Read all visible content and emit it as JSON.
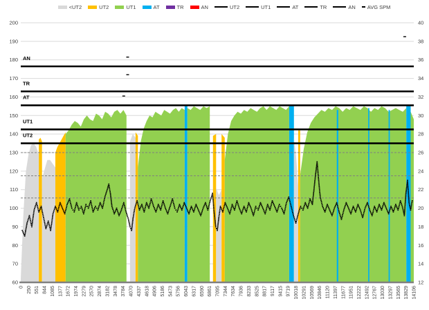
{
  "chart_data": {
    "type": "area",
    "title": "",
    "legend": {
      "swatch_items": [
        {
          "label": "<UT2",
          "color": "#d9d9d9"
        },
        {
          "label": "UT2",
          "color": "#ffc000"
        },
        {
          "label": "UT1",
          "color": "#92d050"
        },
        {
          "label": "AT",
          "color": "#00b0f0"
        },
        {
          "label": "TR",
          "color": "#7030a0"
        },
        {
          "label": "AN",
          "color": "#ff0000"
        }
      ],
      "line_items": [
        {
          "label": "UT2"
        },
        {
          "label": "UT1"
        },
        {
          "label": "AT"
        },
        {
          "label": "TR"
        },
        {
          "label": "AN"
        }
      ],
      "dash_item": {
        "label": "AVG SPM"
      }
    },
    "left_axis": {
      "min": 60,
      "max": 200,
      "step": 10,
      "ticks": [
        200,
        190,
        180,
        170,
        160,
        150,
        140,
        130,
        120,
        110,
        100,
        90,
        80,
        70,
        60
      ]
    },
    "right_axis": {
      "min": 12,
      "max": 40,
      "step": 2,
      "ticks": [
        40,
        38,
        36,
        34,
        32,
        30,
        28,
        26,
        24,
        22,
        20,
        18,
        16,
        14,
        12
      ]
    },
    "x_labels": [
      "0",
      "250",
      "551",
      "844",
      "1085",
      "1377",
      "1672",
      "1974",
      "2279",
      "2570",
      "2874",
      "3182",
      "3478",
      "3784",
      "4070",
      "4337",
      "4618",
      "4906",
      "5186",
      "5473",
      "5756",
      "6043",
      "6317",
      "6590",
      "6861",
      "7095",
      "7344",
      "7634",
      "7936",
      "8233",
      "8525",
      "8817",
      "9117",
      "9415",
      "9719",
      "10018",
      "10291",
      "10569",
      "10846",
      "11120",
      "11397",
      "11677",
      "11951",
      "12222",
      "12492",
      "12767",
      "13030",
      "13297",
      "13565",
      "13829",
      "14106"
    ],
    "threshold_lines": [
      {
        "label": "AN",
        "value": 176.5
      },
      {
        "label": "TR",
        "value": 163
      },
      {
        "label": "AT",
        "value": 155.5
      },
      {
        "label": "UT1",
        "value": 142.5
      },
      {
        "label": "UT2",
        "value": 135
      }
    ],
    "dashed_guide_values": [
      130,
      117.5,
      105.5
    ],
    "area_segments": [
      {
        "c": "gray",
        "x0": 0,
        "x1": 0.046,
        "t": [
          62,
          96,
          120,
          129,
          134,
          135,
          133,
          129
        ]
      },
      {
        "c": "orange",
        "x0": 0.046,
        "x1": 0.054,
        "t": [
          137,
          138,
          136
        ]
      },
      {
        "c": "gray",
        "x0": 0.054,
        "x1": 0.088,
        "t": [
          116,
          121,
          126,
          126,
          124,
          122
        ]
      },
      {
        "c": "orange",
        "x0": 0.088,
        "x1": 0.114,
        "t": [
          130,
          133,
          135,
          137,
          139,
          141
        ]
      },
      {
        "c": "green",
        "x0": 0.114,
        "x1": 0.269,
        "t": [
          140,
          142,
          145,
          147,
          146,
          144,
          148,
          150,
          148,
          147,
          151,
          150,
          148,
          152,
          151,
          149,
          152,
          153,
          151,
          153,
          150
        ]
      },
      {
        "c": "gray",
        "x0": 0.278,
        "x1": 0.292,
        "t": [
          136,
          140,
          138
        ]
      },
      {
        "c": "orange",
        "x0": 0.292,
        "x1": 0.298,
        "t": [
          141,
          139
        ]
      },
      {
        "c": "green",
        "x0": 0.298,
        "x1": 0.417,
        "t": [
          122,
          136,
          143,
          147,
          150,
          149,
          152,
          151,
          150,
          153,
          152,
          151,
          153,
          154,
          152,
          154,
          153
        ]
      },
      {
        "c": "blue",
        "x0": 0.417,
        "x1": 0.424,
        "t": [
          155
        ]
      },
      {
        "c": "green",
        "x0": 0.424,
        "x1": 0.481,
        "t": [
          154,
          153,
          155,
          154,
          153,
          155,
          154,
          155
        ]
      },
      {
        "c": "orange",
        "x0": 0.489,
        "x1": 0.497,
        "t": [
          139,
          140
        ]
      },
      {
        "c": "gray",
        "x0": 0.497,
        "x1": 0.511,
        "t": [
          111,
          107,
          110
        ]
      },
      {
        "c": "orange",
        "x0": 0.511,
        "x1": 0.519,
        "t": [
          140,
          138
        ]
      },
      {
        "c": "green",
        "x0": 0.519,
        "x1": 0.683,
        "t": [
          126,
          140,
          147,
          150,
          152,
          151,
          153,
          152,
          154,
          153,
          152,
          154,
          155,
          153,
          155,
          154,
          153,
          155,
          154,
          153,
          155
        ]
      },
      {
        "c": "blue",
        "x0": 0.683,
        "x1": 0.695,
        "t": [
          155
        ]
      },
      {
        "c": "gray",
        "x0": 0.695,
        "x1": 0.706,
        "t": [
          138,
          128,
          112
        ]
      },
      {
        "c": "orange",
        "x0": 0.706,
        "x1": 0.711,
        "t": [
          142
        ]
      },
      {
        "c": "green",
        "x0": 0.711,
        "x1": 0.981,
        "t": [
          118,
          132,
          141,
          146,
          149,
          151,
          153,
          152,
          154,
          153,
          155,
          154,
          152,
          154,
          153,
          155,
          154,
          153,
          155,
          154,
          152,
          154,
          153,
          155,
          154,
          152,
          153,
          154,
          153,
          152,
          154
        ]
      },
      {
        "c": "blue",
        "x0": 0.804,
        "x1": 0.808,
        "t": [
          153
        ]
      },
      {
        "c": "blue",
        "x0": 0.884,
        "x1": 0.887,
        "t": [
          154
        ]
      },
      {
        "c": "blue",
        "x0": 0.936,
        "x1": 0.939,
        "t": [
          153
        ]
      },
      {
        "c": "blue",
        "x0": 0.981,
        "x1": 0.992,
        "t": [
          155
        ]
      },
      {
        "c": "green",
        "x0": 0.992,
        "x1": 1,
        "t": [
          152,
          148
        ]
      }
    ],
    "avg_spm_points": [
      [
        0.004,
        88
      ],
      [
        0.01,
        85
      ],
      [
        0.016,
        92
      ],
      [
        0.022,
        96
      ],
      [
        0.028,
        90
      ],
      [
        0.034,
        99
      ],
      [
        0.04,
        103
      ],
      [
        0.046,
        98
      ],
      [
        0.052,
        101
      ],
      [
        0.058,
        95
      ],
      [
        0.064,
        89
      ],
      [
        0.07,
        93
      ],
      [
        0.076,
        88
      ],
      [
        0.082,
        97
      ],
      [
        0.088,
        101
      ],
      [
        0.094,
        98
      ],
      [
        0.1,
        103
      ],
      [
        0.106,
        100
      ],
      [
        0.112,
        97
      ],
      [
        0.118,
        102
      ],
      [
        0.124,
        105
      ],
      [
        0.13,
        100
      ],
      [
        0.136,
        98
      ],
      [
        0.142,
        103
      ],
      [
        0.148,
        99
      ],
      [
        0.154,
        101
      ],
      [
        0.16,
        97
      ],
      [
        0.166,
        102
      ],
      [
        0.172,
        100
      ],
      [
        0.178,
        104
      ],
      [
        0.184,
        98
      ],
      [
        0.19,
        101
      ],
      [
        0.196,
        99
      ],
      [
        0.202,
        103
      ],
      [
        0.208,
        100
      ],
      [
        0.214,
        106
      ],
      [
        0.22,
        110
      ],
      [
        0.224,
        113
      ],
      [
        0.228,
        108
      ],
      [
        0.232,
        101
      ],
      [
        0.238,
        97
      ],
      [
        0.244,
        100
      ],
      [
        0.25,
        96
      ],
      [
        0.256,
        99
      ],
      [
        0.262,
        103
      ],
      [
        0.268,
        98
      ],
      [
        0.274,
        94
      ],
      [
        0.278,
        90
      ],
      [
        0.282,
        88
      ],
      [
        0.286,
        95
      ],
      [
        0.29,
        100
      ],
      [
        0.296,
        104
      ],
      [
        0.302,
        99
      ],
      [
        0.308,
        102
      ],
      [
        0.314,
        98
      ],
      [
        0.32,
        103
      ],
      [
        0.326,
        100
      ],
      [
        0.332,
        105
      ],
      [
        0.338,
        101
      ],
      [
        0.344,
        98
      ],
      [
        0.35,
        102
      ],
      [
        0.356,
        99
      ],
      [
        0.362,
        104
      ],
      [
        0.368,
        100
      ],
      [
        0.374,
        97
      ],
      [
        0.38,
        101
      ],
      [
        0.386,
        105
      ],
      [
        0.392,
        100
      ],
      [
        0.398,
        98
      ],
      [
        0.404,
        102
      ],
      [
        0.41,
        99
      ],
      [
        0.416,
        103
      ],
      [
        0.422,
        100
      ],
      [
        0.428,
        97
      ],
      [
        0.434,
        101
      ],
      [
        0.44,
        98
      ],
      [
        0.446,
        102
      ],
      [
        0.452,
        99
      ],
      [
        0.458,
        96
      ],
      [
        0.464,
        100
      ],
      [
        0.47,
        103
      ],
      [
        0.476,
        99
      ],
      [
        0.482,
        104
      ],
      [
        0.488,
        108
      ],
      [
        0.492,
        98
      ],
      [
        0.496,
        90
      ],
      [
        0.5,
        88
      ],
      [
        0.504,
        95
      ],
      [
        0.508,
        101
      ],
      [
        0.514,
        98
      ],
      [
        0.52,
        103
      ],
      [
        0.526,
        100
      ],
      [
        0.532,
        97
      ],
      [
        0.538,
        102
      ],
      [
        0.544,
        99
      ],
      [
        0.55,
        104
      ],
      [
        0.556,
        100
      ],
      [
        0.562,
        97
      ],
      [
        0.568,
        101
      ],
      [
        0.574,
        98
      ],
      [
        0.58,
        103
      ],
      [
        0.586,
        100
      ],
      [
        0.592,
        96
      ],
      [
        0.598,
        101
      ],
      [
        0.604,
        99
      ],
      [
        0.61,
        103
      ],
      [
        0.616,
        100
      ],
      [
        0.622,
        97
      ],
      [
        0.628,
        102
      ],
      [
        0.634,
        99
      ],
      [
        0.64,
        104
      ],
      [
        0.646,
        101
      ],
      [
        0.652,
        98
      ],
      [
        0.658,
        102
      ],
      [
        0.664,
        100
      ],
      [
        0.67,
        97
      ],
      [
        0.676,
        103
      ],
      [
        0.682,
        106
      ],
      [
        0.688,
        101
      ],
      [
        0.694,
        96
      ],
      [
        0.7,
        92
      ],
      [
        0.706,
        97
      ],
      [
        0.712,
        101
      ],
      [
        0.718,
        99
      ],
      [
        0.724,
        103
      ],
      [
        0.73,
        100
      ],
      [
        0.736,
        105
      ],
      [
        0.742,
        102
      ],
      [
        0.746,
        110
      ],
      [
        0.75,
        118
      ],
      [
        0.754,
        125
      ],
      [
        0.758,
        115
      ],
      [
        0.762,
        106
      ],
      [
        0.768,
        101
      ],
      [
        0.774,
        98
      ],
      [
        0.78,
        102
      ],
      [
        0.786,
        99
      ],
      [
        0.792,
        96
      ],
      [
        0.798,
        100
      ],
      [
        0.804,
        103
      ],
      [
        0.81,
        98
      ],
      [
        0.816,
        94
      ],
      [
        0.822,
        99
      ],
      [
        0.828,
        103
      ],
      [
        0.834,
        100
      ],
      [
        0.84,
        97
      ],
      [
        0.846,
        101
      ],
      [
        0.852,
        98
      ],
      [
        0.858,
        102
      ],
      [
        0.864,
        99
      ],
      [
        0.87,
        95
      ],
      [
        0.876,
        100
      ],
      [
        0.882,
        103
      ],
      [
        0.888,
        99
      ],
      [
        0.894,
        96
      ],
      [
        0.9,
        101
      ],
      [
        0.906,
        98
      ],
      [
        0.912,
        102
      ],
      [
        0.918,
        99
      ],
      [
        0.924,
        103
      ],
      [
        0.93,
        100
      ],
      [
        0.936,
        97
      ],
      [
        0.942,
        101
      ],
      [
        0.948,
        98
      ],
      [
        0.954,
        102
      ],
      [
        0.96,
        99
      ],
      [
        0.966,
        104
      ],
      [
        0.972,
        100
      ],
      [
        0.976,
        96
      ],
      [
        0.98,
        108
      ],
      [
        0.984,
        115
      ],
      [
        0.988,
        103
      ],
      [
        0.992,
        99
      ],
      [
        0.996,
        104
      ]
    ],
    "outlier_dashes": [
      [
        0.272,
        181.5
      ],
      [
        0.272,
        172
      ],
      [
        0.262,
        160.5
      ],
      [
        0.977,
        192.5
      ]
    ],
    "colors": {
      "gray": "#d9d9d9",
      "orange": "#ffc000",
      "green": "#92d050",
      "blue": "#00b0f0",
      "purple": "#7030a0",
      "red": "#ff0000",
      "scatter": "#000000",
      "grid": "#d9d9d9",
      "dashed": "#7f7f7f",
      "axis_text": "#404040",
      "baseline": "#808080",
      "threshold": "#000000"
    }
  }
}
